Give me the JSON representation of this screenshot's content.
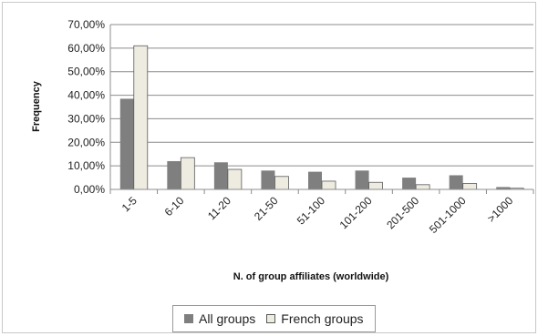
{
  "chart_data": {
    "type": "bar",
    "categories": [
      "1-5",
      "6-10",
      "11-20",
      "21-50",
      "51-100",
      "101-200",
      "201-500",
      "501-1000",
      ">1000"
    ],
    "series": [
      {
        "name": "All groups",
        "values": [
          38.5,
          12.0,
          11.5,
          8.0,
          7.5,
          8.0,
          5.0,
          6.0,
          1.0
        ],
        "color": "#7f7f7f"
      },
      {
        "name": "French groups",
        "values": [
          61.0,
          13.5,
          8.5,
          5.5,
          3.5,
          3.0,
          2.0,
          2.5,
          0.5
        ],
        "color": "#eeece1"
      }
    ],
    "yticks": [
      "0,00%",
      "10,00%",
      "20,00%",
      "30,00%",
      "40,00%",
      "50,00%",
      "60,00%",
      "70,00%"
    ],
    "ylim": [
      0,
      70
    ],
    "xlabel": "N. of group affiliates (worldwide)",
    "ylabel": "Frequency",
    "grid": true,
    "legend": "bottom"
  }
}
